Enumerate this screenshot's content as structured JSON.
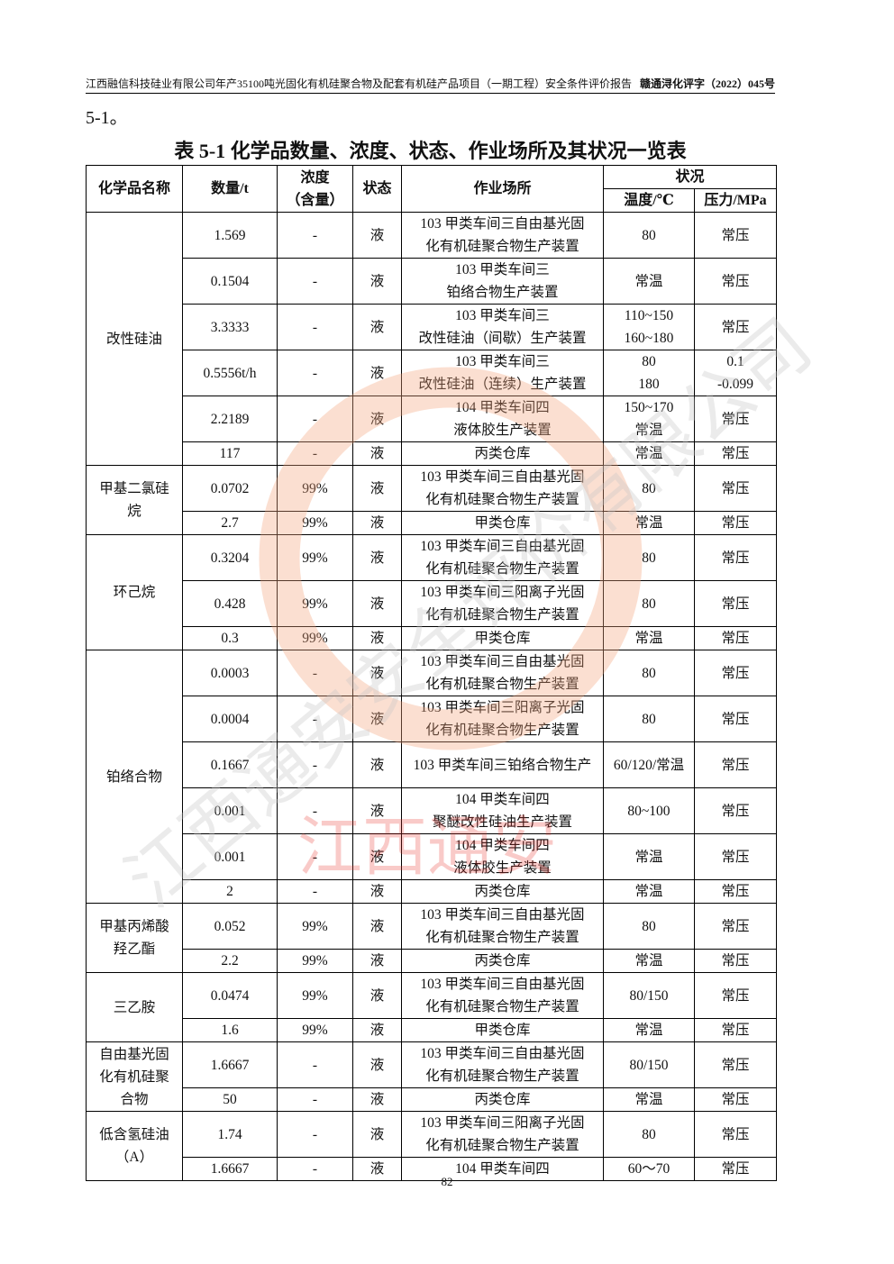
{
  "header": {
    "report_title": "江西融信科技硅业有限公司年产35100吨光固化有机硅聚合物及配套有机硅产品项目（一期工程）安全条件评价报告",
    "report_code": "赣通浔化评字（2022）045号"
  },
  "lead_text": "5-1。",
  "table_title": "表 5-1  化学品数量、浓度、状态、作业场所及其状况一览表",
  "columns": {
    "name": "化学品名称",
    "qty": "数量/t",
    "conc": "浓度\n（含量）",
    "state": "状态",
    "place": "作业场所",
    "status": "状况",
    "temp": "温度/℃",
    "pressure": "压力/MPa"
  },
  "groups": [
    {
      "name": "改性硅油",
      "rows": [
        {
          "qty": "1.569",
          "conc": "-",
          "state": "液",
          "place": "103 甲类车间三自由基光固\n化有机硅聚合物生产装置",
          "temp": "80",
          "pressure": "常压"
        },
        {
          "qty": "0.1504",
          "conc": "-",
          "state": "液",
          "place": "103 甲类车间三\n铂络合物生产装置",
          "temp": "常温",
          "pressure": "常压"
        },
        {
          "qty": "3.3333",
          "conc": "-",
          "state": "液",
          "place": "103 甲类车间三\n改性硅油（间歇）生产装置",
          "temp": "110~150\n160~180",
          "pressure": "常压"
        },
        {
          "qty": "0.5556t/h",
          "conc": "-",
          "state": "液",
          "place": "103 甲类车间三\n改性硅油（连续）生产装置",
          "temp": "80\n180",
          "pressure": "0.1\n-0.099"
        },
        {
          "qty": "2.2189",
          "conc": "-",
          "state": "液",
          "place": "104 甲类车间四\n液体胶生产装置",
          "temp": "150~170\n常温",
          "pressure": "常压"
        },
        {
          "qty": "117",
          "conc": "-",
          "state": "液",
          "place": "丙类仓库",
          "temp": "常温",
          "pressure": "常压"
        }
      ]
    },
    {
      "name": "甲基二氯硅\n烷",
      "rows": [
        {
          "qty": "0.0702",
          "conc": "99%",
          "state": "液",
          "place": "103 甲类车间三自由基光固\n化有机硅聚合物生产装置",
          "temp": "80",
          "pressure": "常压"
        },
        {
          "qty": "2.7",
          "conc": "99%",
          "state": "液",
          "place": "甲类仓库",
          "temp": "常温",
          "pressure": "常压"
        }
      ]
    },
    {
      "name": "环己烷",
      "rows": [
        {
          "qty": "0.3204",
          "conc": "99%",
          "state": "液",
          "place": "103 甲类车间三自由基光固\n化有机硅聚合物生产装置",
          "temp": "80",
          "pressure": "常压"
        },
        {
          "qty": "0.428",
          "conc": "99%",
          "state": "液",
          "place": "103 甲类车间三阳离子光固\n化有机硅聚合物生产装置",
          "temp": "80",
          "pressure": "常压"
        },
        {
          "qty": "0.3",
          "conc": "99%",
          "state": "液",
          "place": "甲类仓库",
          "temp": "常温",
          "pressure": "常压"
        }
      ]
    },
    {
      "name": "铂络合物",
      "rows": [
        {
          "qty": "0.0003",
          "conc": "-",
          "state": "液",
          "place": "103 甲类车间三自由基光固\n化有机硅聚合物生产装置",
          "temp": "80",
          "pressure": "常压"
        },
        {
          "qty": "0.0004",
          "conc": "-",
          "state": "液",
          "place": "103 甲类车间三阳离子光固\n化有机硅聚合物生产装置",
          "temp": "80",
          "pressure": "常压"
        },
        {
          "qty": "0.1667",
          "conc": "-",
          "state": "液",
          "place": "103 甲类车间三铂络合物生产",
          "temp": "60/120/常温",
          "pressure": "常压"
        },
        {
          "qty": "0.001",
          "conc": "-",
          "state": "液",
          "place": "104 甲类车间四\n聚醚改性硅油生产装置",
          "temp": "80~100",
          "pressure": "常压"
        },
        {
          "qty": "0.001",
          "conc": "-",
          "state": "液",
          "place": "104 甲类车间四\n液体胶生产装置",
          "temp": "常温",
          "pressure": "常压"
        },
        {
          "qty": "2",
          "conc": "-",
          "state": "液",
          "place": "丙类仓库",
          "temp": "常温",
          "pressure": "常压"
        }
      ]
    },
    {
      "name": "甲基丙烯酸\n羟乙酯",
      "rows": [
        {
          "qty": "0.052",
          "conc": "99%",
          "state": "液",
          "place": "103 甲类车间三自由基光固\n化有机硅聚合物生产装置",
          "temp": "80",
          "pressure": "常压"
        },
        {
          "qty": "2.2",
          "conc": "99%",
          "state": "液",
          "place": "丙类仓库",
          "temp": "常温",
          "pressure": "常压"
        }
      ]
    },
    {
      "name": "三乙胺",
      "rows": [
        {
          "qty": "0.0474",
          "conc": "99%",
          "state": "液",
          "place": "103 甲类车间三自由基光固\n化有机硅聚合物生产装置",
          "temp": "80/150",
          "pressure": "常压"
        },
        {
          "qty": "1.6",
          "conc": "99%",
          "state": "液",
          "place": "甲类仓库",
          "temp": "常温",
          "pressure": "常压"
        }
      ]
    },
    {
      "name": "自由基光固\n化有机硅聚\n合物",
      "rows": [
        {
          "qty": "1.6667",
          "conc": "-",
          "state": "液",
          "place": "103 甲类车间三自由基光固\n化有机硅聚合物生产装置",
          "temp": "80/150",
          "pressure": "常压"
        },
        {
          "qty": "50",
          "conc": "-",
          "state": "液",
          "place": "丙类仓库",
          "temp": "常温",
          "pressure": "常压"
        }
      ]
    },
    {
      "name": "低含氢硅油\n（A）",
      "rows": [
        {
          "qty": "1.74",
          "conc": "-",
          "state": "液",
          "place": "103 甲类车间三阳离子光固\n化有机硅聚合物生产装置",
          "temp": "80",
          "pressure": "常压"
        },
        {
          "qty": "1.6667",
          "conc": "-",
          "state": "液",
          "place": "104 甲类车间四",
          "temp": "60～70",
          "pressure": "常压"
        }
      ]
    }
  ],
  "page_number": "82",
  "watermark": {
    "text": "江西通安安全评价有限公司",
    "brand": "江西通安",
    "colors": {
      "logo": "#f4a47a",
      "text": "#c8c8c8",
      "brand": "#e8302a"
    }
  }
}
